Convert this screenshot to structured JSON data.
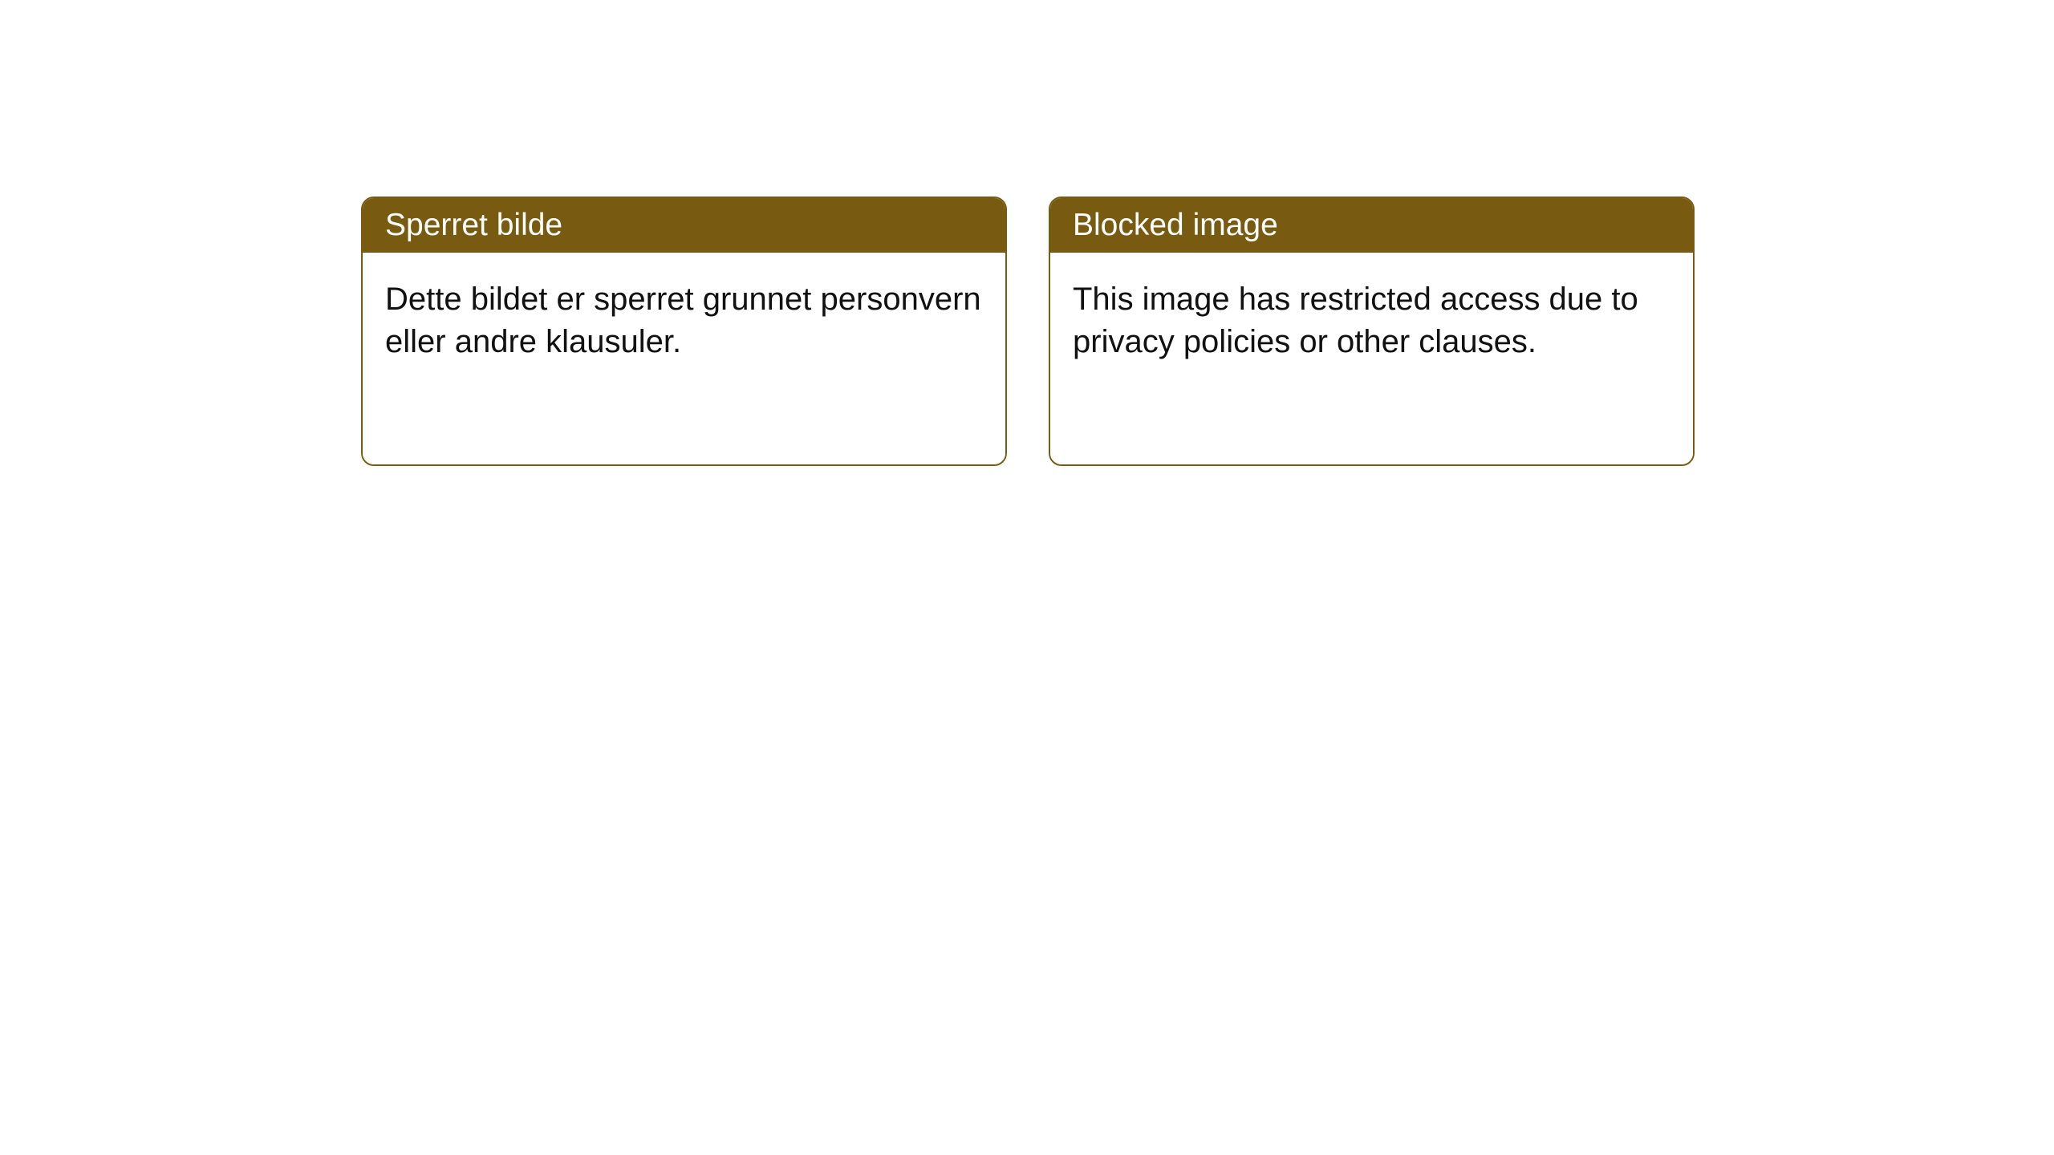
{
  "styling": {
    "card_header_bg": "#785b10",
    "card_header_text_color": "#ffffff",
    "card_border_color": "#785b10",
    "card_body_bg": "#ffffff",
    "card_body_text_color": "#111111",
    "card_border_width": 2,
    "card_border_radius": 16,
    "page_bg": "#ffffff",
    "header_fontsize": 39,
    "body_fontsize": 40
  },
  "cards": [
    {
      "title": "Sperret bilde",
      "body": "Dette bildet er sperret grunnet personvern eller andre klausuler."
    },
    {
      "title": "Blocked image",
      "body": "This image has restricted access due to privacy policies or other clauses."
    }
  ]
}
